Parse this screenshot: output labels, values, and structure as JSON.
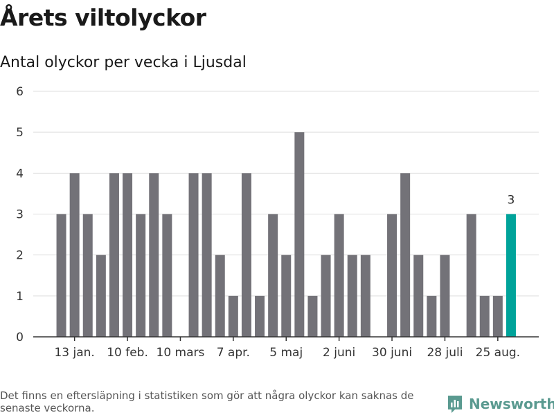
{
  "header": {
    "title": "Årets viltolyckor",
    "subtitle": "Antal olyckor per vecka i Ljusdal"
  },
  "footnote": "Det finns en eftersläpning i statistiken som gör att några olyckor kan saknas de senaste veckorna.",
  "brand": {
    "name": "Newsworthy",
    "icon": "newsworthy-logo-icon",
    "color": "#5a9a90"
  },
  "colors": {
    "bar": "#737278",
    "highlight": "#00a39a",
    "grid": "#dddddd",
    "axis": "#333333"
  },
  "chart_data": {
    "type": "bar",
    "title": "Antal olyckor per vecka i Ljusdal",
    "ylim": [
      0,
      6
    ],
    "yticks": [
      0,
      1,
      2,
      3,
      4,
      5,
      6
    ],
    "grid": true,
    "values": [
      3,
      4,
      3,
      2,
      4,
      4,
      3,
      4,
      3,
      0,
      4,
      4,
      2,
      1,
      4,
      1,
      3,
      2,
      5,
      1,
      2,
      3,
      2,
      2,
      0,
      3,
      4,
      2,
      1,
      2,
      0,
      3,
      1,
      1,
      3
    ],
    "x_tick_labels": [
      {
        "index": 1,
        "label": "13 jan."
      },
      {
        "index": 5,
        "label": "10 feb."
      },
      {
        "index": 9,
        "label": "10 mars"
      },
      {
        "index": 13,
        "label": "7 apr."
      },
      {
        "index": 17,
        "label": "5 maj"
      },
      {
        "index": 21,
        "label": "2 juni"
      },
      {
        "index": 25,
        "label": "30 juni"
      },
      {
        "index": 29,
        "label": "28 juli"
      },
      {
        "index": 33,
        "label": "25 aug."
      }
    ],
    "highlight_index": 34,
    "highlight_label": "3"
  }
}
